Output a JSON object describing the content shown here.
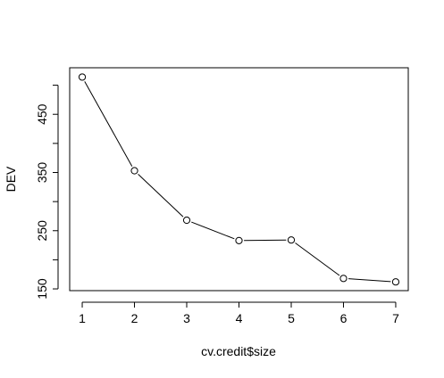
{
  "chart_data": {
    "type": "line",
    "title": "",
    "xlabel": "cv.credit$size",
    "ylabel": "DEV",
    "x": [
      1,
      2,
      3,
      4,
      5,
      6,
      7
    ],
    "series": [
      {
        "values": [
          514,
          353,
          268,
          233,
          234,
          168,
          162
        ],
        "marker": "open-circle",
        "line": "solid",
        "color": "#000000"
      }
    ],
    "xticks": [
      "1",
      "2",
      "3",
      "4",
      "5",
      "6",
      "7"
    ],
    "yticks": [
      "150",
      "250",
      "350",
      "450"
    ],
    "ytick_values": [
      150,
      250,
      350,
      450
    ],
    "y_minor_ticks": [
      200,
      300,
      400,
      500
    ],
    "xlim": [
      0.76,
      7.24
    ],
    "ylim": [
      147,
      530
    ],
    "grid": false,
    "legend": "none",
    "box": true
  }
}
